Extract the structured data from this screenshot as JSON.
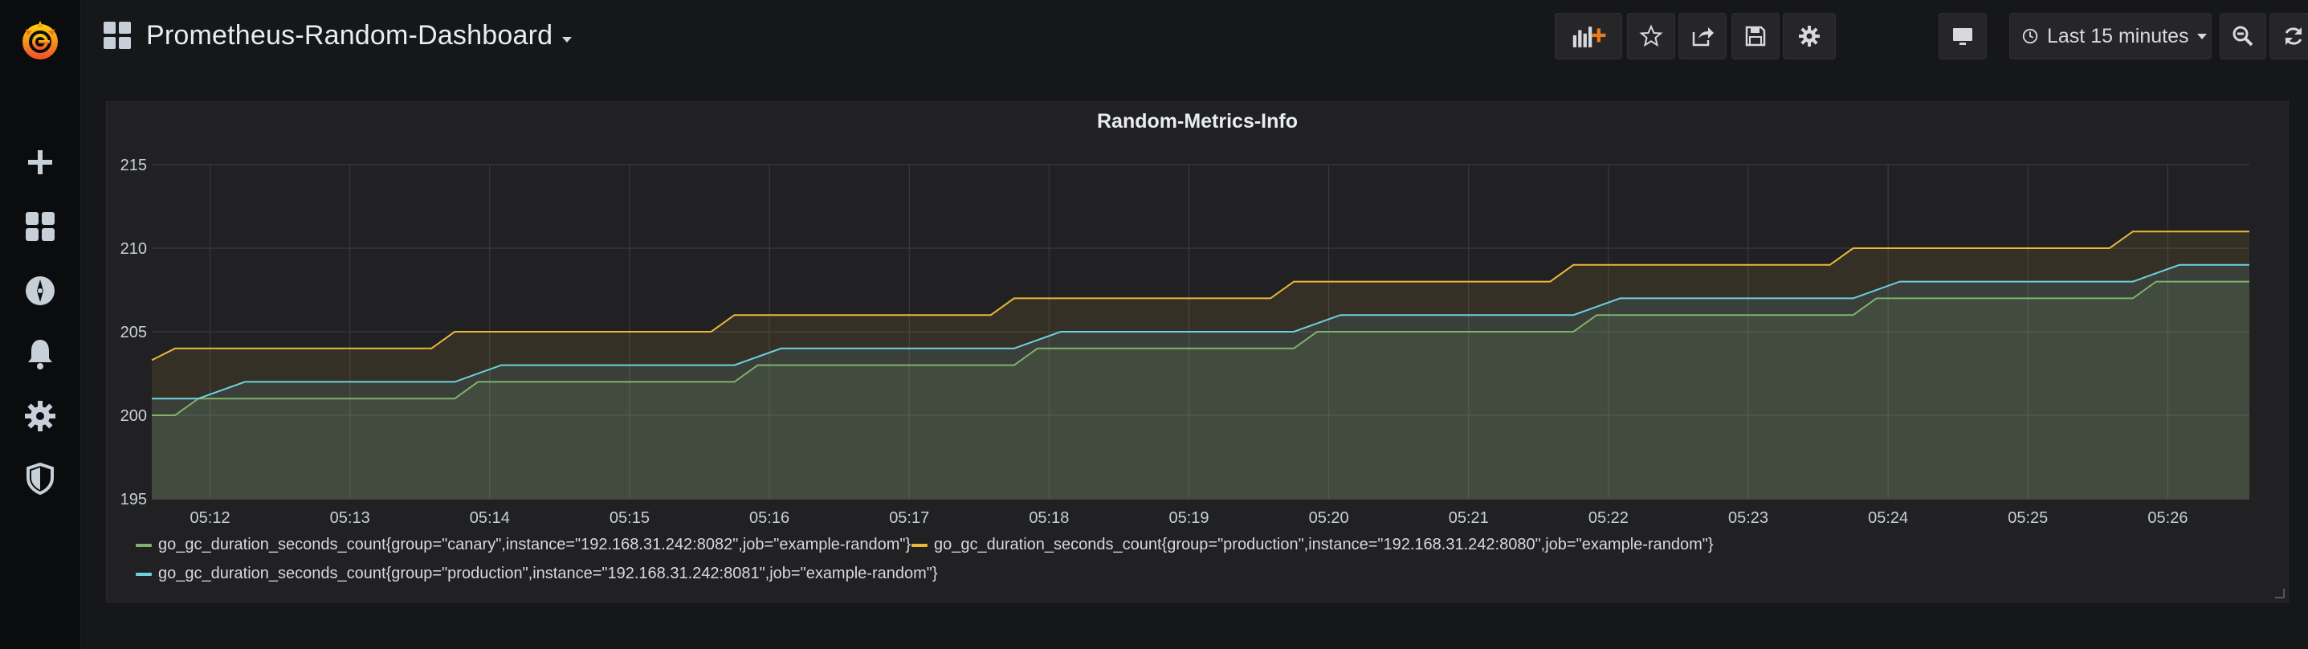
{
  "sidebar": {
    "logo_icon": "grafana-logo-icon",
    "items": [
      {
        "name": "create",
        "icon": "plus-icon"
      },
      {
        "name": "dashboards",
        "icon": "dashboards-icon"
      },
      {
        "name": "explore",
        "icon": "compass-icon"
      },
      {
        "name": "alerting",
        "icon": "bell-icon"
      },
      {
        "name": "configuration",
        "icon": "gear-icon"
      },
      {
        "name": "server-admin",
        "icon": "shield-icon"
      }
    ]
  },
  "header": {
    "title": "Prometheus-Random-Dashboard",
    "time_range_label": "Last 15 minutes",
    "buttons": [
      "add-panel-icon",
      "star-icon",
      "share-icon",
      "save-icon",
      "settings-icon",
      "tv-mode-icon",
      "clock-icon",
      "zoom-out-icon",
      "refresh-icon",
      "dropdown-caret-icon"
    ]
  },
  "colors": {
    "green": "#7eb26d",
    "orange": "#eab839",
    "cyan": "#6ed0e0",
    "background": "#161719",
    "panel": "#212124"
  },
  "panel": {
    "title": "Random-Metrics-Info"
  },
  "chart_data": {
    "type": "line",
    "title": "Random-Metrics-Info",
    "xlabel": "",
    "ylabel": "",
    "x_ticks": [
      "05:12",
      "05:13",
      "05:14",
      "05:15",
      "05:16",
      "05:17",
      "05:18",
      "05:19",
      "05:20",
      "05:21",
      "05:22",
      "05:23",
      "05:24",
      "05:25",
      "05:26"
    ],
    "y_ticks": [
      "195",
      "200",
      "205",
      "210",
      "215"
    ],
    "ylim": [
      195,
      215
    ],
    "xlim": [
      "05:11:35",
      "05:26:35"
    ],
    "grid": true,
    "legend_position": "bottom",
    "fill_area": true,
    "series": [
      {
        "name": "go_gc_duration_seconds_count{group=\"canary\",instance=\"192.168.31.242:8082\",job=\"example-random\"}",
        "color": "#7eb26d",
        "points": [
          [
            "05:11:35",
            200
          ],
          [
            "05:11:45",
            200
          ],
          [
            "05:11:55",
            201
          ],
          [
            "05:13:35",
            201
          ],
          [
            "05:13:45",
            201
          ],
          [
            "05:13:55",
            202
          ],
          [
            "05:15:35",
            202
          ],
          [
            "05:15:45",
            202
          ],
          [
            "05:15:55",
            203
          ],
          [
            "05:17:35",
            203
          ],
          [
            "05:17:45",
            203
          ],
          [
            "05:17:55",
            204
          ],
          [
            "05:19:35",
            204
          ],
          [
            "05:19:45",
            204
          ],
          [
            "05:19:55",
            205
          ],
          [
            "05:21:35",
            205
          ],
          [
            "05:21:45",
            205
          ],
          [
            "05:21:55",
            206
          ],
          [
            "05:23:35",
            206
          ],
          [
            "05:23:45",
            206
          ],
          [
            "05:23:55",
            207
          ],
          [
            "05:25:35",
            207
          ],
          [
            "05:25:45",
            207
          ],
          [
            "05:25:55",
            208
          ],
          [
            "05:26:35",
            208
          ]
        ]
      },
      {
        "name": "go_gc_duration_seconds_count{group=\"production\",instance=\"192.168.31.242:8080\",job=\"example-random\"}",
        "color": "#eab839",
        "points": [
          [
            "05:11:35",
            203.3
          ],
          [
            "05:11:45",
            204
          ],
          [
            "05:13:25",
            204
          ],
          [
            "05:13:35",
            204
          ],
          [
            "05:13:45",
            205
          ],
          [
            "05:15:25",
            205
          ],
          [
            "05:15:35",
            205
          ],
          [
            "05:15:45",
            206
          ],
          [
            "05:17:25",
            206
          ],
          [
            "05:17:35",
            206
          ],
          [
            "05:17:45",
            207
          ],
          [
            "05:19:25",
            207
          ],
          [
            "05:19:35",
            207
          ],
          [
            "05:19:45",
            208
          ],
          [
            "05:21:25",
            208
          ],
          [
            "05:21:35",
            208
          ],
          [
            "05:21:45",
            209
          ],
          [
            "05:23:25",
            209
          ],
          [
            "05:23:35",
            209
          ],
          [
            "05:23:45",
            210
          ],
          [
            "05:25:25",
            210
          ],
          [
            "05:25:35",
            210
          ],
          [
            "05:25:45",
            211
          ],
          [
            "05:26:35",
            211
          ]
        ]
      },
      {
        "name": "go_gc_duration_seconds_count{group=\"production\",instance=\"192.168.31.242:8081\",job=\"example-random\"}",
        "color": "#6ed0e0",
        "points": [
          [
            "05:11:35",
            201
          ],
          [
            "05:11:55",
            201
          ],
          [
            "05:12:15",
            202
          ],
          [
            "05:13:45",
            202
          ],
          [
            "05:14:05",
            203
          ],
          [
            "05:15:45",
            203
          ],
          [
            "05:16:05",
            204
          ],
          [
            "05:17:45",
            204
          ],
          [
            "05:18:05",
            205
          ],
          [
            "05:19:45",
            205
          ],
          [
            "05:20:05",
            206
          ],
          [
            "05:21:45",
            206
          ],
          [
            "05:22:05",
            207
          ],
          [
            "05:23:45",
            207
          ],
          [
            "05:24:05",
            208
          ],
          [
            "05:25:45",
            208
          ],
          [
            "05:26:05",
            209
          ],
          [
            "05:26:35",
            209
          ]
        ]
      }
    ]
  }
}
